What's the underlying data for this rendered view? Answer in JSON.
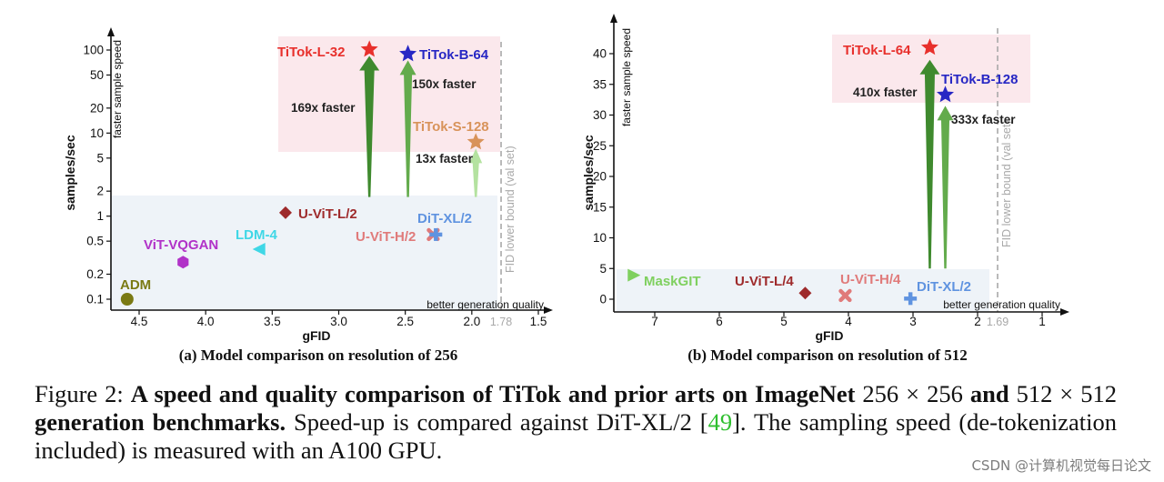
{
  "chart_data": [
    {
      "type": "scatter",
      "panel": "a",
      "title": "(a) Model comparison on resolution of 256",
      "xlabel": "gFID",
      "ylabel": "samples/sec",
      "y_arrow_label": "faster sample speed",
      "x_arrow_label": "better generation quality",
      "x_scale": "linear",
      "x_inverted": true,
      "xlim": [
        4.78,
        1.47
      ],
      "y_scale": "log",
      "ylim": [
        0.08,
        140
      ],
      "xticks": [
        4.5,
        4.0,
        3.5,
        3.0,
        2.5,
        2.0,
        1.5
      ],
      "xtick_labels": [
        "4.5",
        "4.0",
        "3.5",
        "3.0",
        "2.5",
        "2.0",
        "1.5"
      ],
      "yticks": [
        0.1,
        0.2,
        0.5,
        1,
        2,
        5,
        10,
        20,
        50,
        100
      ],
      "ytick_labels": [
        "0.1",
        "0.2",
        "0.5",
        "1",
        "2",
        "5",
        "10",
        "20",
        "50",
        "100"
      ],
      "fid_bound": {
        "x": 1.78,
        "label": "FID lower bound (val set)",
        "tick_label": "1.78"
      },
      "points": [
        {
          "name": "ADM",
          "x": 4.59,
          "y": 0.1,
          "marker": "circle",
          "color": "#7a7a14"
        },
        {
          "name": "ViT-VQGAN",
          "x": 4.17,
          "y": 0.28,
          "marker": "hexagon",
          "color": "#b132c8"
        },
        {
          "name": "LDM-4",
          "x": 3.6,
          "y": 0.4,
          "marker": "triangle-left",
          "color": "#3fd7e6"
        },
        {
          "name": "U-ViT-L/2",
          "x": 3.4,
          "y": 1.1,
          "marker": "diamond",
          "color": "#9e2a2b"
        },
        {
          "name": "U-ViT-H/2",
          "x": 2.29,
          "y": 0.6,
          "marker": "x",
          "color": "#e07a7a"
        },
        {
          "name": "DiT-XL/2",
          "x": 2.27,
          "y": 0.6,
          "marker": "plus",
          "color": "#5f93e0"
        },
        {
          "name": "TiTok-L-32",
          "x": 2.77,
          "y": 101.6,
          "marker": "star",
          "color": "#e8302c"
        },
        {
          "name": "TiTok-B-64",
          "x": 2.48,
          "y": 89.8,
          "marker": "star",
          "color": "#2727c4"
        },
        {
          "name": "TiTok-S-128",
          "x": 1.97,
          "y": 7.8,
          "marker": "star",
          "color": "#d8935a"
        }
      ],
      "arrows": [
        {
          "label": "169x faster",
          "x": 2.77,
          "y_from": 1.7,
          "y_to": 85,
          "color": "#3f8a2e"
        },
        {
          "label": "150x faster",
          "x": 2.48,
          "y_from": 1.7,
          "y_to": 75,
          "color": "#63ab4c"
        },
        {
          "label": "13x faster",
          "x": 1.97,
          "y_from": 1.7,
          "y_to": 6.5,
          "color": "#b4e2a0"
        }
      ]
    },
    {
      "type": "scatter",
      "panel": "b",
      "title": "(b) Model comparison on resolution of 512",
      "xlabel": "gFID",
      "ylabel": "samples/sec",
      "y_arrow_label": "faster sample speed",
      "x_arrow_label": "better generation quality",
      "x_scale": "linear",
      "x_inverted": true,
      "xlim": [
        7.55,
        0.6
      ],
      "y_scale": "linear",
      "ylim": [
        -1.5,
        43
      ],
      "xticks": [
        7,
        6,
        5,
        4,
        3,
        2,
        1
      ],
      "xtick_labels": [
        "7",
        "6",
        "5",
        "4",
        "3",
        "2",
        "1"
      ],
      "yticks": [
        0,
        5,
        10,
        15,
        20,
        25,
        30,
        35,
        40
      ],
      "ytick_labels": [
        "0",
        "5",
        "10",
        "15",
        "20",
        "25",
        "30",
        "35",
        "40"
      ],
      "fid_bound": {
        "x": 1.69,
        "label": "FID lower bound (val set)",
        "tick_label": "1.69"
      },
      "points": [
        {
          "name": "MaskGIT",
          "x": 7.32,
          "y": 3.9,
          "marker": "triangle-right",
          "color": "#7fd05f"
        },
        {
          "name": "U-ViT-L/4",
          "x": 4.67,
          "y": 1.0,
          "marker": "diamond",
          "color": "#9e2a2b"
        },
        {
          "name": "U-ViT-H/4",
          "x": 4.05,
          "y": 0.6,
          "marker": "x",
          "color": "#e07a7a"
        },
        {
          "name": "DiT-XL/2",
          "x": 3.04,
          "y": 0.1,
          "marker": "plus",
          "color": "#5f93e0"
        },
        {
          "name": "TiTok-L-64",
          "x": 2.74,
          "y": 41.0,
          "marker": "star",
          "color": "#e8302c"
        },
        {
          "name": "TiTok-B-128",
          "x": 2.5,
          "y": 33.3,
          "marker": "star",
          "color": "#2727c4"
        }
      ],
      "arrows": [
        {
          "label": "410x faster",
          "x": 2.74,
          "y_from": 5,
          "y_to": 39,
          "color": "#3f8a2e"
        },
        {
          "label": "333x faster",
          "x": 2.5,
          "y_from": 5,
          "y_to": 31.5,
          "color": "#63ab4c"
        }
      ]
    }
  ],
  "caption": {
    "prefix": "Figure 2: ",
    "bold_1": "A speed and quality comparison of TiTok and prior arts on ImageNet",
    "math_1": " 256 × 256 ",
    "bold_2": "and",
    "math_2": "512 × 512 ",
    "bold_3": "generation benchmarks.",
    "text_1": " Speed-up is compared against DiT-XL/2 [",
    "ref": "49",
    "text_2": "]. The sampling speed (de-tokenization included) is measured with an A100 GPU."
  },
  "watermark": "CSDN @计算机视觉每日论文"
}
